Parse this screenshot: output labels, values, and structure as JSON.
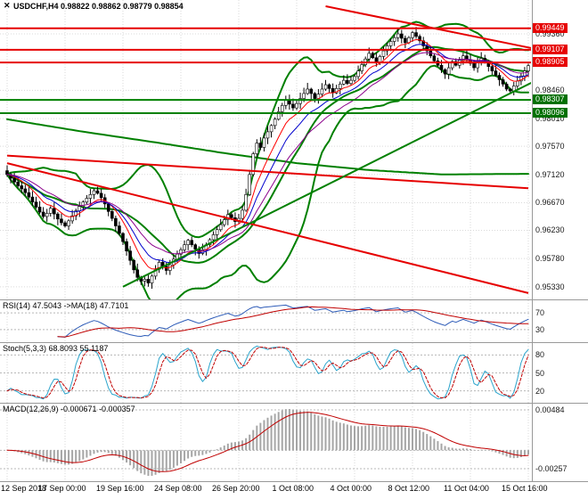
{
  "window": {
    "close_glyph": "✕"
  },
  "header": {
    "title": "USDCHF,H4 0.98822 0.98862 0.98779 0.98854"
  },
  "colors": {
    "background": "#FFFFFF",
    "grid": "#DADADA",
    "level_dotted": "#B8B8B8",
    "separator": "#999999",
    "candle_bull": "#FFFFFF",
    "candle_bear": "#000000",
    "candle_outline": "#000000",
    "bollinger": "#008000",
    "ma200": "#008000",
    "ema_fast": "#FF0000",
    "ema_mid": "#0000CD",
    "ema_slow": "#8B008B",
    "line_red": "#E60000",
    "line_green": "#008000",
    "badge_red": "#E60000",
    "badge_green": "#007000",
    "rsi_main": "#2E5CB8",
    "rsi_ma": "#C00000",
    "stoch_k": "#2AA4CC",
    "stoch_d": "#C00000",
    "macd_hist": "#A6A6A6",
    "macd_signal": "#C00000",
    "tick_text": "#1A1A1A"
  },
  "chart_data": {
    "type": "candlestick",
    "symbol": "USDCHF",
    "timeframe": "H4",
    "ohlc_current": {
      "open": "0.98822",
      "high": "0.98862",
      "low": "0.98779",
      "close": "0.98854"
    },
    "x_labels": [
      "12 Sep 2018",
      "17 Sep 00:00",
      "19 Sep 16:00",
      "24 Sep 08:00",
      "26 Sep 20:00",
      "1 Oct 08:00",
      "4 Oct 00:00",
      "8 Oct 12:00",
      "11 Oct 04:00",
      "15 Oct 16:00"
    ],
    "bars_per_label": 16,
    "first_open": 0.9718,
    "closes": [
      0.9712,
      0.9706,
      0.97,
      0.9694,
      0.9689,
      0.9683,
      0.9676,
      0.9668,
      0.966,
      0.9652,
      0.9645,
      0.965,
      0.9658,
      0.9649,
      0.9641,
      0.9635,
      0.963,
      0.9638,
      0.9646,
      0.9654,
      0.9661,
      0.9668,
      0.9674,
      0.968,
      0.9686,
      0.9682,
      0.9675,
      0.9665,
      0.9653,
      0.9642,
      0.963,
      0.9618,
      0.9605,
      0.959,
      0.9575,
      0.956,
      0.9548,
      0.9542,
      0.9545,
      0.9539,
      0.955,
      0.9561,
      0.9572,
      0.9566,
      0.9559,
      0.9568,
      0.9577,
      0.9585,
      0.9592,
      0.96,
      0.9607,
      0.96,
      0.9593,
      0.9586,
      0.9592,
      0.96,
      0.9608,
      0.9616,
      0.9624,
      0.9632,
      0.964,
      0.9648,
      0.9643,
      0.9637,
      0.9642,
      0.9655,
      0.968,
      0.9712,
      0.9745,
      0.9762,
      0.9755,
      0.977,
      0.978,
      0.979,
      0.98,
      0.9812,
      0.9822,
      0.983,
      0.9824,
      0.9818,
      0.9825,
      0.9833,
      0.9841,
      0.9848,
      0.9841,
      0.9833,
      0.984,
      0.9848,
      0.9855,
      0.9849,
      0.9842,
      0.9849,
      0.9856,
      0.9862,
      0.9857,
      0.9862,
      0.9868,
      0.9877,
      0.9887,
      0.9896,
      0.9905,
      0.9898,
      0.9891,
      0.99,
      0.9909,
      0.9917,
      0.9924,
      0.993,
      0.9936,
      0.9929,
      0.9922,
      0.993,
      0.9938,
      0.9932,
      0.9925,
      0.9917,
      0.9909,
      0.9901,
      0.9893,
      0.9886,
      0.9879,
      0.9872,
      0.9882,
      0.9892,
      0.9886,
      0.9894,
      0.9901,
      0.9895,
      0.9889,
      0.9882,
      0.989,
      0.9897,
      0.9891,
      0.9884,
      0.9877,
      0.987,
      0.9863,
      0.9856,
      0.9848,
      0.9845,
      0.9853,
      0.9861,
      0.9869,
      0.9877,
      0.98854
    ],
    "highs_override": {
      "108": 0.99449
    },
    "lows_override": {
      "39": 0.9533
    },
    "y_ticks": [
      "0.99360",
      "0.98910",
      "0.98460",
      "0.98010",
      "0.97570",
      "0.97120",
      "0.96670",
      "0.96230",
      "0.95780",
      "0.95330"
    ],
    "price_markers": [
      {
        "label": "0.99449",
        "price": 0.99449,
        "color": "red"
      },
      {
        "label": "0.99107",
        "price": 0.99107,
        "color": "red"
      },
      {
        "label": "0.98905",
        "price": 0.98905,
        "color": "red"
      },
      {
        "label": "0.98307",
        "price": 0.98307,
        "color": "green"
      },
      {
        "label": "0.98096",
        "price": 0.98096,
        "color": "green"
      }
    ],
    "trend_lines": [
      {
        "name": "trendline-descending-major",
        "color": "red",
        "from": [
          0,
          0.973
        ],
        "to": [
          144,
          0.9523
        ]
      },
      {
        "name": "trendline-descending-mid",
        "color": "red",
        "from": [
          0,
          0.9742
        ],
        "to": [
          144,
          0.969
        ]
      },
      {
        "name": "trendline-descending-top",
        "color": "red",
        "from": [
          88,
          0.998
        ],
        "to": [
          152,
          0.9905
        ]
      },
      {
        "name": "trendline-ascending-support",
        "color": "green",
        "from": [
          32,
          0.9533
        ],
        "to": [
          150,
          0.9873
        ]
      }
    ],
    "bollinger": {
      "period": 20,
      "deviation": 2
    },
    "emas": [
      8,
      13,
      21
    ],
    "ma200_anchors": [
      [
        0,
        0.98
      ],
      [
        20,
        0.9781
      ],
      [
        40,
        0.9764
      ],
      [
        60,
        0.9746
      ],
      [
        80,
        0.973
      ],
      [
        100,
        0.9719
      ],
      [
        120,
        0.9712
      ],
      [
        144,
        0.9713
      ]
    ],
    "sub_panels": [
      {
        "type": "line",
        "name": "RSI",
        "title": "RSI(14) 47.5043 ->MA(18) 47.7101",
        "period": 14,
        "ma_period": 18,
        "value": 47.5043,
        "ma_value": 47.7101,
        "levels": [
          70,
          30
        ]
      },
      {
        "type": "line",
        "name": "Stochastic",
        "title": "Stoch(5,3,3) 68.8093 55.1187",
        "k": 68.8093,
        "d": 55.1187,
        "levels": [
          80,
          50,
          20
        ]
      },
      {
        "type": "macd",
        "name": "MACD",
        "title": "MACD(12,26,9) -0.000671 -0.000357",
        "macd": -0.000671,
        "signal": -0.000357,
        "y_ticks": [
          "0.00484",
          "-0.00257"
        ]
      }
    ]
  }
}
